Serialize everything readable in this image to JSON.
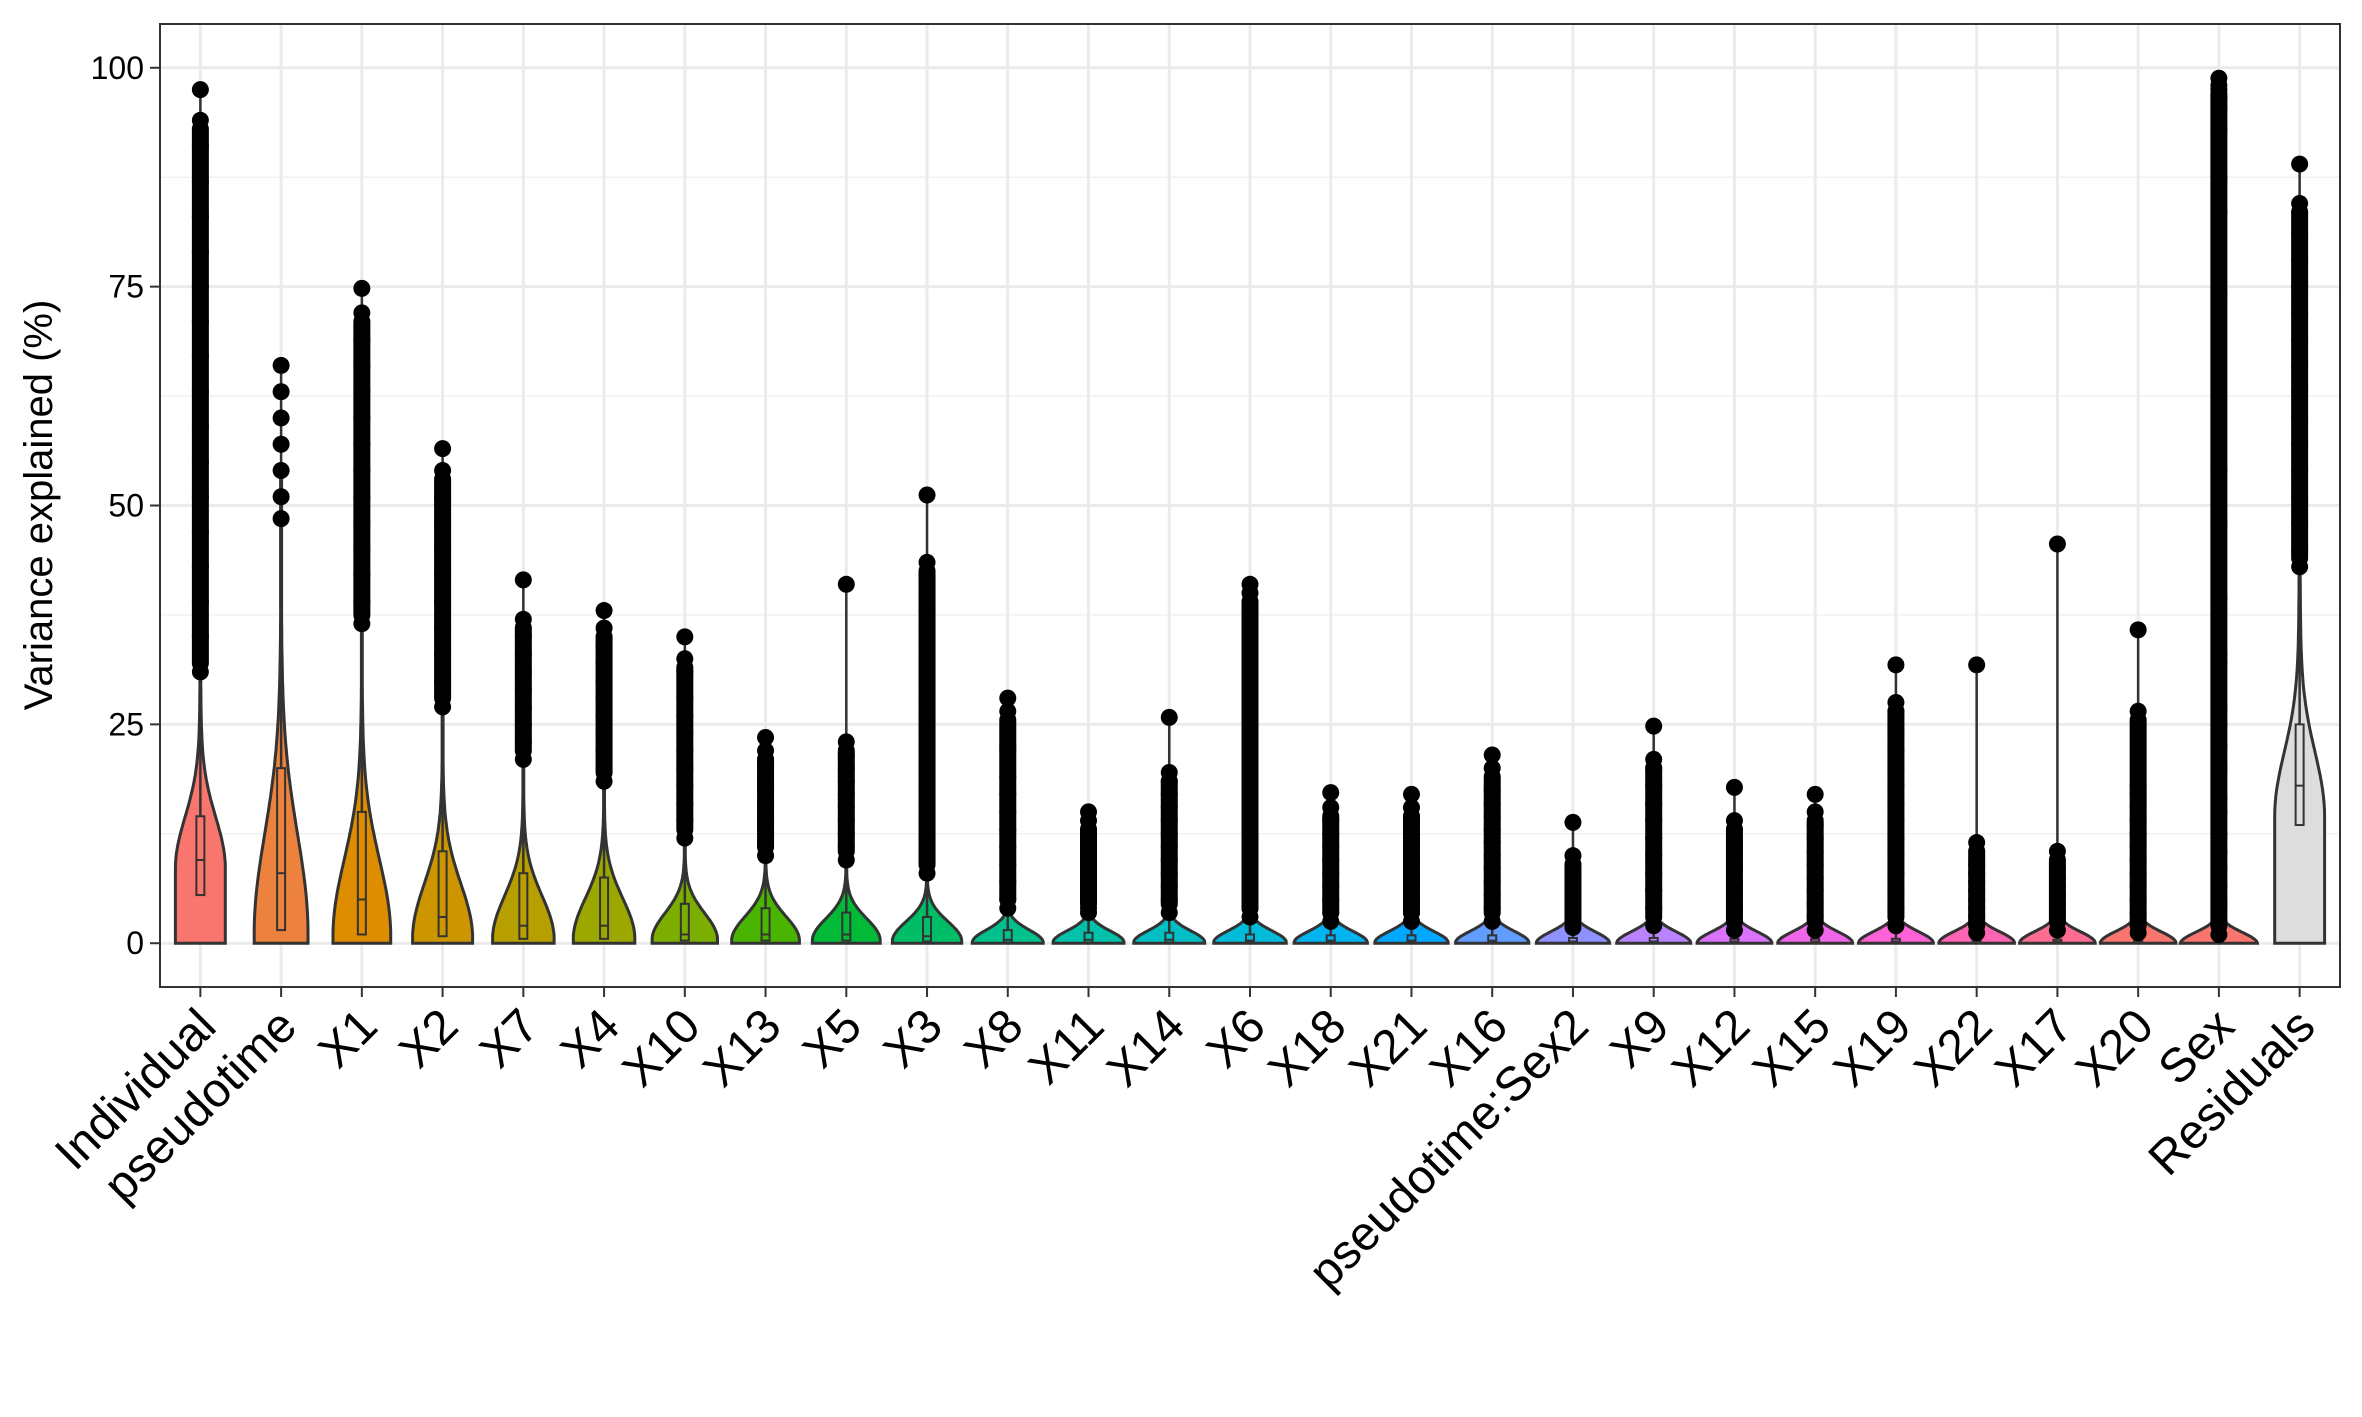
{
  "chart_data": {
    "type": "violin",
    "title": "",
    "xlabel": "",
    "ylabel": "Variance explained (%)",
    "ylim": [
      -5,
      105
    ],
    "yticks": [
      0,
      25,
      50,
      75,
      100
    ],
    "grid": true,
    "legend": "none",
    "categories": [
      {
        "name": "Individual",
        "color": "#F8766D",
        "max": 97.5,
        "q1": 5.5,
        "median": 9.5,
        "q3": 14.5,
        "whisker_hi": 28,
        "mode": 9,
        "peak": 0.55,
        "outliers": [
          97.5,
          94,
          91,
          87,
          83,
          79,
          75,
          71,
          67,
          63,
          59,
          55,
          51,
          47,
          43,
          39,
          35,
          31
        ]
      },
      {
        "name": "pseudotime",
        "color": "#ED813E",
        "max": 66,
        "q1": 1.5,
        "median": 8,
        "q3": 20,
        "whisker_hi": 47,
        "mode": 2,
        "peak": 0.6,
        "outliers": [
          66,
          63,
          60,
          57,
          54,
          51,
          48.5
        ]
      },
      {
        "name": "X1",
        "color": "#DE8C00",
        "max": 74.8,
        "q1": 1,
        "median": 5,
        "q3": 15,
        "whisker_hi": 36,
        "mode": 1.5,
        "peak": 0.65,
        "outliers": [
          74.8,
          72,
          69,
          66,
          63,
          60,
          57,
          54,
          51,
          48,
          45,
          42,
          39,
          36.5
        ]
      },
      {
        "name": "X2",
        "color": "#CD9600",
        "max": 56.5,
        "q1": 0.8,
        "median": 3,
        "q3": 10.5,
        "whisker_hi": 26,
        "mode": 1,
        "peak": 0.68,
        "outliers": [
          56.5,
          54,
          51,
          48,
          45,
          42,
          39,
          36,
          33,
          30,
          27
        ]
      },
      {
        "name": "X7",
        "color": "#B79F00",
        "max": 41.5,
        "q1": 0.5,
        "median": 2,
        "q3": 8,
        "whisker_hi": 20,
        "mode": 0.8,
        "peak": 0.7,
        "outliers": [
          41.5,
          37,
          35,
          33,
          31,
          29,
          27,
          25,
          23,
          21
        ]
      },
      {
        "name": "X4",
        "color": "#9CA700",
        "max": 38,
        "q1": 0.5,
        "median": 2,
        "q3": 7.5,
        "whisker_hi": 18,
        "mode": 0.8,
        "peak": 0.7,
        "outliers": [
          38,
          36,
          34,
          32,
          30,
          28,
          26,
          24,
          22,
          20,
          18.5
        ]
      },
      {
        "name": "X10",
        "color": "#7CAE00",
        "max": 35,
        "q1": 0.3,
        "median": 1,
        "q3": 4.5,
        "whisker_hi": 11,
        "mode": 0.6,
        "peak": 0.75,
        "outliers": [
          35,
          32.5,
          31,
          28,
          26,
          24,
          22,
          20,
          18,
          16,
          14,
          12
        ]
      },
      {
        "name": "X13",
        "color": "#49B500",
        "max": 23.5,
        "q1": 0.3,
        "median": 1,
        "q3": 4,
        "whisker_hi": 9,
        "mode": 0.5,
        "peak": 0.78,
        "outliers": [
          23.5,
          22,
          20.5,
          19,
          17.5,
          16,
          14.5,
          13,
          11.5,
          10
        ]
      },
      {
        "name": "X5",
        "color": "#00BA38",
        "max": 41,
        "q1": 0.3,
        "median": 1,
        "q3": 3.5,
        "whisker_hi": 9,
        "mode": 0.5,
        "peak": 0.78,
        "outliers": [
          41,
          23,
          21.5,
          20,
          18.5,
          17,
          15.5,
          14,
          12.5,
          11,
          9.5
        ]
      },
      {
        "name": "X3",
        "color": "#00BE67",
        "max": 51.2,
        "q1": 0.2,
        "median": 0.8,
        "q3": 3,
        "whisker_hi": 7.5,
        "mode": 0.4,
        "peak": 0.8,
        "outliers": [
          51.2,
          43.5,
          42,
          40,
          38,
          36,
          34,
          32,
          30,
          28,
          26,
          24,
          22,
          20,
          18,
          16,
          14,
          12,
          10,
          8
        ]
      },
      {
        "name": "X8",
        "color": "#00C08B",
        "max": 28,
        "q1": 0.1,
        "median": 0.4,
        "q3": 1.5,
        "whisker_hi": 3.5,
        "mode": 0.2,
        "peak": 0.82,
        "outliers": [
          28,
          26.5,
          22.5,
          22,
          19,
          17,
          15,
          13,
          11,
          9,
          7,
          5,
          4
        ]
      },
      {
        "name": "X11",
        "color": "#00C1AA",
        "max": 15,
        "q1": 0.1,
        "median": 0.4,
        "q3": 1.2,
        "whisker_hi": 3,
        "mode": 0.2,
        "peak": 0.82,
        "outliers": [
          15,
          14,
          12.5,
          11,
          10,
          9,
          8,
          7,
          6,
          5,
          4,
          3.5
        ]
      },
      {
        "name": "X14",
        "color": "#00BFC4",
        "max": 25.8,
        "q1": 0.1,
        "median": 0.4,
        "q3": 1.2,
        "whisker_hi": 3,
        "mode": 0.2,
        "peak": 0.82,
        "outliers": [
          25.8,
          19.5,
          18.5,
          17,
          15.5,
          14,
          12.5,
          11,
          9.5,
          8,
          6.5,
          5,
          3.5
        ]
      },
      {
        "name": "X6",
        "color": "#00BBDA",
        "max": 41,
        "q1": 0.1,
        "median": 0.3,
        "q3": 1,
        "whisker_hi": 2.5,
        "mode": 0.2,
        "peak": 0.84,
        "outliers": [
          41,
          40,
          37,
          36,
          33,
          32,
          30,
          28,
          26,
          24,
          22,
          20,
          18,
          16,
          14,
          12,
          10,
          8,
          6,
          4,
          3
        ]
      },
      {
        "name": "X18",
        "color": "#00B4EF",
        "max": 17.2,
        "q1": 0.1,
        "median": 0.3,
        "q3": 0.9,
        "whisker_hi": 2.2,
        "mode": 0.15,
        "peak": 0.85,
        "outliers": [
          17.2,
          15.5,
          14,
          12.5,
          11,
          9.5,
          8,
          6.5,
          5,
          3.5,
          2.5
        ]
      },
      {
        "name": "X21",
        "color": "#00A9FF",
        "max": 17,
        "q1": 0.1,
        "median": 0.3,
        "q3": 0.9,
        "whisker_hi": 2.2,
        "mode": 0.15,
        "peak": 0.85,
        "outliers": [
          17,
          15.5,
          14,
          12.5,
          11,
          9.5,
          8,
          6.5,
          5,
          3.5,
          2.5
        ]
      },
      {
        "name": "X16",
        "color": "#619CFF",
        "max": 21.5,
        "q1": 0.1,
        "median": 0.3,
        "q3": 0.9,
        "whisker_hi": 2.2,
        "mode": 0.15,
        "peak": 0.85,
        "outliers": [
          21.5,
          20,
          17.5,
          16,
          14.5,
          13,
          11.5,
          10,
          8.5,
          7,
          5.5,
          4,
          2.5
        ]
      },
      {
        "name": "pseudotime:Sex2",
        "color": "#8F91FF",
        "max": 13.8,
        "q1": 0.05,
        "median": 0.2,
        "q3": 0.6,
        "whisker_hi": 1.5,
        "mode": 0.1,
        "peak": 0.85,
        "outliers": [
          13.8,
          10,
          7.5,
          6.5,
          5.5,
          4.5,
          3.5,
          2.5,
          1.8
        ]
      },
      {
        "name": "X9",
        "color": "#B983FF",
        "max": 24.8,
        "q1": 0.05,
        "median": 0.2,
        "q3": 0.6,
        "whisker_hi": 1.5,
        "mode": 0.1,
        "peak": 0.86,
        "outliers": [
          24.8,
          21,
          20,
          18,
          16,
          14,
          12,
          10,
          8,
          6,
          4,
          2
        ]
      },
      {
        "name": "X12",
        "color": "#DB72FB",
        "max": 17.8,
        "q1": 0.05,
        "median": 0.2,
        "q3": 0.5,
        "whisker_hi": 1.2,
        "mode": 0.1,
        "peak": 0.87,
        "outliers": [
          17.8,
          14,
          13,
          11.5,
          10,
          8.5,
          7,
          5.5,
          4,
          2.5,
          1.5
        ]
      },
      {
        "name": "X15",
        "color": "#F066EA",
        "max": 17,
        "q1": 0.05,
        "median": 0.2,
        "q3": 0.5,
        "whisker_hi": 1.2,
        "mode": 0.1,
        "peak": 0.87,
        "outliers": [
          17,
          15,
          13.5,
          12,
          10.5,
          9,
          7.5,
          6,
          4.5,
          3,
          1.5
        ]
      },
      {
        "name": "X19",
        "color": "#FC61D5",
        "max": 31.8,
        "q1": 0.05,
        "median": 0.2,
        "q3": 0.5,
        "whisker_hi": 1.2,
        "mode": 0.1,
        "peak": 0.87,
        "outliers": [
          31.8,
          27.5,
          26.5,
          24,
          22,
          20,
          18,
          16,
          14,
          12,
          10,
          8,
          6,
          4,
          2
        ]
      },
      {
        "name": "X22",
        "color": "#FF63B6",
        "max": 31.8,
        "q1": 0.05,
        "median": 0.15,
        "q3": 0.4,
        "whisker_hi": 1,
        "mode": 0.1,
        "peak": 0.88,
        "outliers": [
          31.8,
          11.5,
          9,
          8,
          7,
          6,
          5,
          4,
          3,
          2,
          1.2
        ]
      },
      {
        "name": "X17",
        "color": "#FF6C91",
        "max": 45.6,
        "q1": 0.05,
        "median": 0.15,
        "q3": 0.4,
        "whisker_hi": 1,
        "mode": 0.1,
        "peak": 0.88,
        "outliers": [
          45.6,
          10.5,
          8.5,
          7.5,
          6.5,
          5.5,
          4.5,
          3.5,
          2.5,
          1.5
        ]
      },
      {
        "name": "X20",
        "color": "#F8766D",
        "max": 35.8,
        "q1": 0.05,
        "median": 0.15,
        "q3": 0.4,
        "whisker_hi": 1,
        "mode": 0.1,
        "peak": 0.88,
        "outliers": [
          35.8,
          26.5,
          18,
          17,
          15.5,
          14,
          12.5,
          11,
          9.5,
          8,
          6.5,
          5,
          3.5,
          2,
          1.2
        ]
      },
      {
        "name": "Sex",
        "color": "#F8766D",
        "max": 98.8,
        "q1": 0.02,
        "median": 0.05,
        "q3": 0.2,
        "whisker_hi": 0.5,
        "mode": 0.02,
        "peak": 0.9,
        "outliers": [
          98.8,
          98,
          97.5,
          96.5,
          95.5,
          93,
          87.5,
          83.5,
          74,
          54,
          48,
          39.5,
          33,
          32,
          27,
          25,
          22.5,
          20,
          16.5,
          15,
          12.5,
          10.5,
          8.5,
          6.5,
          4.5,
          2.5,
          1
        ]
      },
      {
        "name": "Residuals",
        "color": "#DDDDDD",
        "max": 89,
        "q1": 13.5,
        "median": 18,
        "q3": 25,
        "whisker_hi": 42,
        "mode": 15,
        "peak": 0.55,
        "outliers": [
          89,
          84.5,
          83.5,
          81,
          78,
          75,
          72,
          69,
          66,
          63,
          60,
          57,
          54,
          51,
          48,
          45,
          43
        ]
      }
    ]
  }
}
